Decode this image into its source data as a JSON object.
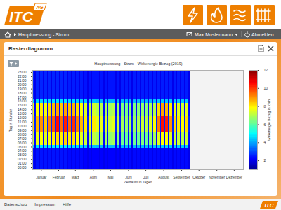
{
  "header": {
    "logo": "ITC",
    "logo_suffix": "AG"
  },
  "nav": {
    "breadcrumb": "Hauptmessung - Strom",
    "user": "Max Mustermann",
    "logout": "Abmelden"
  },
  "panel": {
    "title": "Rasterdiagramm"
  },
  "chart_data": {
    "type": "heatmap",
    "title": "Hauptmessung - Strom - Wirkenergie Bezug (2019)",
    "xlabel": "Zeitraum in Tagen",
    "ylabel": "Tag in Stunden",
    "xlim": [
      0,
      365
    ],
    "xticks": [
      {
        "value": 15,
        "label": "Januar"
      },
      {
        "value": 45,
        "label": "Februar"
      },
      {
        "value": 74,
        "label": "März"
      },
      {
        "value": 105,
        "label": "April"
      },
      {
        "value": 135,
        "label": "Mai"
      },
      {
        "value": 166,
        "label": "Juni"
      },
      {
        "value": 196,
        "label": "Juli"
      },
      {
        "value": 227,
        "label": "August"
      },
      {
        "value": 258,
        "label": "September"
      },
      {
        "value": 288,
        "label": "Oktober"
      },
      {
        "value": 319,
        "label": "November"
      },
      {
        "value": 349,
        "label": "Dezember"
      }
    ],
    "ylim": [
      0,
      24
    ],
    "yticks": [
      {
        "value": 0.5,
        "label": "00:00"
      },
      {
        "value": 1.5,
        "label": "01:00"
      },
      {
        "value": 2.5,
        "label": "02:00"
      },
      {
        "value": 3.5,
        "label": "03:00"
      },
      {
        "value": 4.5,
        "label": "04:00"
      },
      {
        "value": 5.5,
        "label": "05:00"
      },
      {
        "value": 6.5,
        "label": "06:00"
      },
      {
        "value": 7.5,
        "label": "07:00"
      },
      {
        "value": 8.5,
        "label": "08:00"
      },
      {
        "value": 9.5,
        "label": "09:00"
      },
      {
        "value": 10.5,
        "label": "10:00"
      },
      {
        "value": 11.5,
        "label": "11:00"
      },
      {
        "value": 12.5,
        "label": "12:00"
      },
      {
        "value": 13.5,
        "label": "13:00"
      },
      {
        "value": 14.5,
        "label": "14:00"
      },
      {
        "value": 15.5,
        "label": "15:00"
      },
      {
        "value": 16.5,
        "label": "16:00"
      },
      {
        "value": 17.5,
        "label": "17:00"
      },
      {
        "value": 18.5,
        "label": "18:00"
      },
      {
        "value": 19.5,
        "label": "19:00"
      },
      {
        "value": 20.5,
        "label": "20:00"
      },
      {
        "value": 21.5,
        "label": "21:00"
      },
      {
        "value": 22.5,
        "label": "22:00"
      },
      {
        "value": 23.5,
        "label": "23:00"
      }
    ],
    "cells": {
      "x_edges": [
        0,
        4,
        6,
        11,
        13,
        18,
        20,
        25,
        27,
        32,
        34,
        39,
        41,
        46,
        48,
        53,
        55,
        60,
        62,
        67,
        69,
        74,
        76,
        81,
        83,
        88,
        90,
        95,
        97,
        102,
        104,
        109,
        111,
        116,
        118,
        123,
        125,
        130,
        132,
        137,
        139,
        144,
        146,
        151,
        153,
        158,
        160,
        165,
        167,
        172,
        174,
        179,
        181,
        186,
        188,
        193,
        195,
        200,
        202,
        207,
        209,
        214,
        216,
        221,
        223,
        228,
        230,
        235,
        237,
        242,
        244,
        249,
        251,
        256,
        258,
        263,
        265,
        270,
        272,
        273
      ],
      "y_edges": [
        0,
        5,
        6,
        9,
        13,
        16,
        17,
        24
      ],
      "z": [
        [
          2.4,
          4.6,
          7.2,
          8.2,
          7.6,
          4.6,
          2.6
        ],
        [
          2,
          2,
          2.3,
          2.6,
          2.3,
          2,
          2
        ],
        [
          2.4,
          4.7,
          7.6,
          8.6,
          7.8,
          4.6,
          2.6
        ],
        [
          2,
          2,
          2.3,
          2.6,
          2.3,
          2,
          2
        ],
        [
          2.4,
          4.7,
          7.8,
          9,
          8,
          4.6,
          2.6
        ],
        [
          2,
          2,
          2.3,
          2.6,
          2.3,
          2,
          2
        ],
        [
          2.4,
          4.6,
          7.5,
          8.4,
          7.7,
          4.6,
          2.6
        ],
        [
          2,
          2,
          2.3,
          2.6,
          2.3,
          2,
          2
        ],
        [
          2.4,
          4.7,
          7.8,
          9.2,
          8.2,
          4.6,
          2.6
        ],
        [
          2,
          2,
          2.3,
          2.6,
          2.3,
          2,
          2
        ],
        [
          2.4,
          4.8,
          8,
          9.6,
          8.5,
          4.7,
          2.6
        ],
        [
          2,
          2,
          2.3,
          2.6,
          2.3,
          2,
          2
        ],
        [
          2.4,
          4.8,
          8.2,
          10.4,
          8.8,
          4.7,
          2.6
        ],
        [
          2,
          2,
          2.3,
          2.6,
          2.3,
          2,
          2
        ],
        [
          2.4,
          4.8,
          8,
          9.4,
          8.4,
          4.7,
          2.6
        ],
        [
          2,
          2,
          2.3,
          2.6,
          2.3,
          2,
          2
        ],
        [
          2.4,
          4.8,
          8.3,
          10.2,
          8.8,
          4.7,
          2.6
        ],
        [
          2,
          2,
          2.3,
          2.6,
          2.3,
          2,
          2
        ],
        [
          2.3,
          4.7,
          8,
          9.5,
          8.5,
          4.6,
          2.5
        ],
        [
          2,
          2,
          2.3,
          2.6,
          2.3,
          2,
          2
        ],
        [
          2.3,
          4.7,
          8.2,
          10,
          8.6,
          4.6,
          2.5
        ],
        [
          2,
          2,
          2.3,
          2.6,
          2.3,
          2,
          2
        ],
        [
          2.3,
          4.6,
          7.8,
          9.2,
          8.2,
          4.5,
          2.5
        ],
        [
          2,
          2,
          2.3,
          2.6,
          2.3,
          2,
          2
        ],
        [
          2.3,
          4.5,
          7.5,
          8.6,
          7.8,
          4.5,
          2.5
        ],
        [
          2,
          2,
          2.3,
          2.6,
          2.3,
          2,
          2
        ],
        [
          2.2,
          4.4,
          7.2,
          8,
          7.4,
          4.4,
          2.4
        ],
        [
          2,
          2,
          2.3,
          2.6,
          2.3,
          2,
          2
        ],
        [
          2.2,
          4.3,
          7,
          7.8,
          7.2,
          4.3,
          2.4
        ],
        [
          2,
          2,
          2.3,
          2.6,
          2.3,
          2,
          2
        ],
        [
          2.2,
          4.3,
          7.1,
          8,
          7.3,
          4.3,
          2.4
        ],
        [
          2,
          2,
          2.3,
          2.6,
          2.3,
          2,
          2
        ],
        [
          2.2,
          4.2,
          6.8,
          7.5,
          7,
          4.2,
          2.4
        ],
        [
          2,
          2,
          2.3,
          2.6,
          2.3,
          2,
          2
        ],
        [
          2.2,
          4.2,
          6.9,
          7.6,
          7,
          4.2,
          2.4
        ],
        [
          2,
          2,
          2.3,
          2.6,
          2.3,
          2,
          2
        ],
        [
          2.2,
          4.2,
          6.8,
          7.4,
          6.9,
          4.2,
          2.4
        ],
        [
          2,
          2,
          2.3,
          2.6,
          2.3,
          2,
          2
        ],
        [
          2.2,
          4.2,
          6.6,
          7.2,
          6.8,
          4.2,
          2.4
        ],
        [
          2,
          2,
          2.3,
          2.6,
          2.3,
          2,
          2
        ],
        [
          2.2,
          4.2,
          6.8,
          7.5,
          7,
          4.2,
          2.4
        ],
        [
          2,
          2,
          2.3,
          2.6,
          2.3,
          2,
          2
        ],
        [
          2.2,
          4.2,
          6.5,
          7.1,
          6.7,
          4.2,
          2.4
        ],
        [
          2,
          2,
          2.3,
          2.6,
          2.3,
          2,
          2
        ],
        [
          2.3,
          4.2,
          6.2,
          6.8,
          6.4,
          4.2,
          2.5
        ],
        [
          2,
          2,
          2.3,
          2.6,
          2.3,
          2,
          2
        ],
        [
          2.3,
          4.2,
          6.1,
          6.6,
          6.3,
          4.2,
          2.5
        ],
        [
          2,
          2,
          2.3,
          2.6,
          2.3,
          2,
          2
        ],
        [
          2.3,
          4.2,
          6.3,
          6.9,
          6.5,
          4.2,
          2.5
        ],
        [
          2,
          2,
          2.3,
          2.6,
          2.3,
          2,
          2
        ],
        [
          2.3,
          4.2,
          6.2,
          6.7,
          6.4,
          4.2,
          2.5
        ],
        [
          2,
          2,
          2.3,
          2.6,
          2.3,
          2,
          2
        ],
        [
          2.3,
          4.2,
          6.2,
          6.9,
          6.5,
          4.2,
          2.5
        ],
        [
          2,
          2,
          2.3,
          2.6,
          2.3,
          2,
          2
        ],
        [
          2.3,
          4.2,
          6.4,
          7.2,
          6.6,
          4.2,
          2.5
        ],
        [
          2,
          2,
          2.3,
          2.6,
          2.3,
          2,
          2
        ],
        [
          2.3,
          4.2,
          6.2,
          7,
          6.5,
          4.2,
          2.5
        ],
        [
          2,
          2,
          2.3,
          2.6,
          2.3,
          2,
          2
        ],
        [
          2.3,
          4.2,
          6.5,
          7.4,
          6.8,
          4.2,
          2.5
        ],
        [
          2,
          2,
          2.3,
          2.6,
          2.3,
          2,
          2
        ],
        [
          2.3,
          4.3,
          6.8,
          7.8,
          7,
          4.3,
          2.5
        ],
        [
          2,
          2,
          2.3,
          2.6,
          2.3,
          2,
          2
        ],
        [
          2.3,
          4.4,
          7.5,
          9.2,
          8.2,
          4.4,
          2.5
        ],
        [
          2,
          2,
          2.3,
          2.6,
          2.3,
          2,
          2
        ],
        [
          2.3,
          4.4,
          7.8,
          10.4,
          8.8,
          4.4,
          2.5
        ],
        [
          2,
          2,
          2.3,
          2.6,
          2.3,
          2,
          2
        ],
        [
          2.3,
          4.4,
          7.8,
          10.2,
          8.6,
          4.4,
          2.5
        ],
        [
          2,
          2,
          2.3,
          2.6,
          2.3,
          2,
          2
        ],
        [
          2.3,
          4.4,
          7.5,
          9,
          8,
          4.4,
          2.5
        ],
        [
          2,
          2,
          2.3,
          2.6,
          2.3,
          2,
          2
        ],
        [
          2.3,
          4.4,
          7.2,
          8.2,
          7.6,
          4.4,
          2.5
        ],
        [
          2,
          2,
          2.3,
          2.6,
          2.3,
          2,
          2
        ],
        [
          2.3,
          4.4,
          7.2,
          8,
          7.5,
          4.4,
          2.5
        ],
        [
          2,
          2,
          2.3,
          2.6,
          2.3,
          2,
          2
        ],
        [
          2.3,
          4.4,
          7,
          7.8,
          7.3,
          4.4,
          2.5
        ],
        [
          2,
          2,
          2.3,
          2.6,
          2.3,
          2,
          2
        ],
        [
          2.3,
          4.4,
          7.2,
          8.1,
          7.5,
          4.4,
          2.5
        ],
        [
          2,
          2,
          2.3,
          2.6,
          2.3,
          2,
          2
        ],
        [
          2.3,
          4.4,
          7.1,
          7.9,
          7.4,
          4.4,
          2.5
        ]
      ]
    },
    "colorbar": {
      "label": "Wirkenergie Bezug in kWh",
      "range": [
        1,
        12
      ],
      "ticks": [
        2,
        4,
        6,
        8,
        10,
        12
      ]
    }
  },
  "footer": {
    "links": [
      "Datenschutz",
      "Impressum",
      "Hilfe"
    ],
    "logo": "ITC"
  }
}
